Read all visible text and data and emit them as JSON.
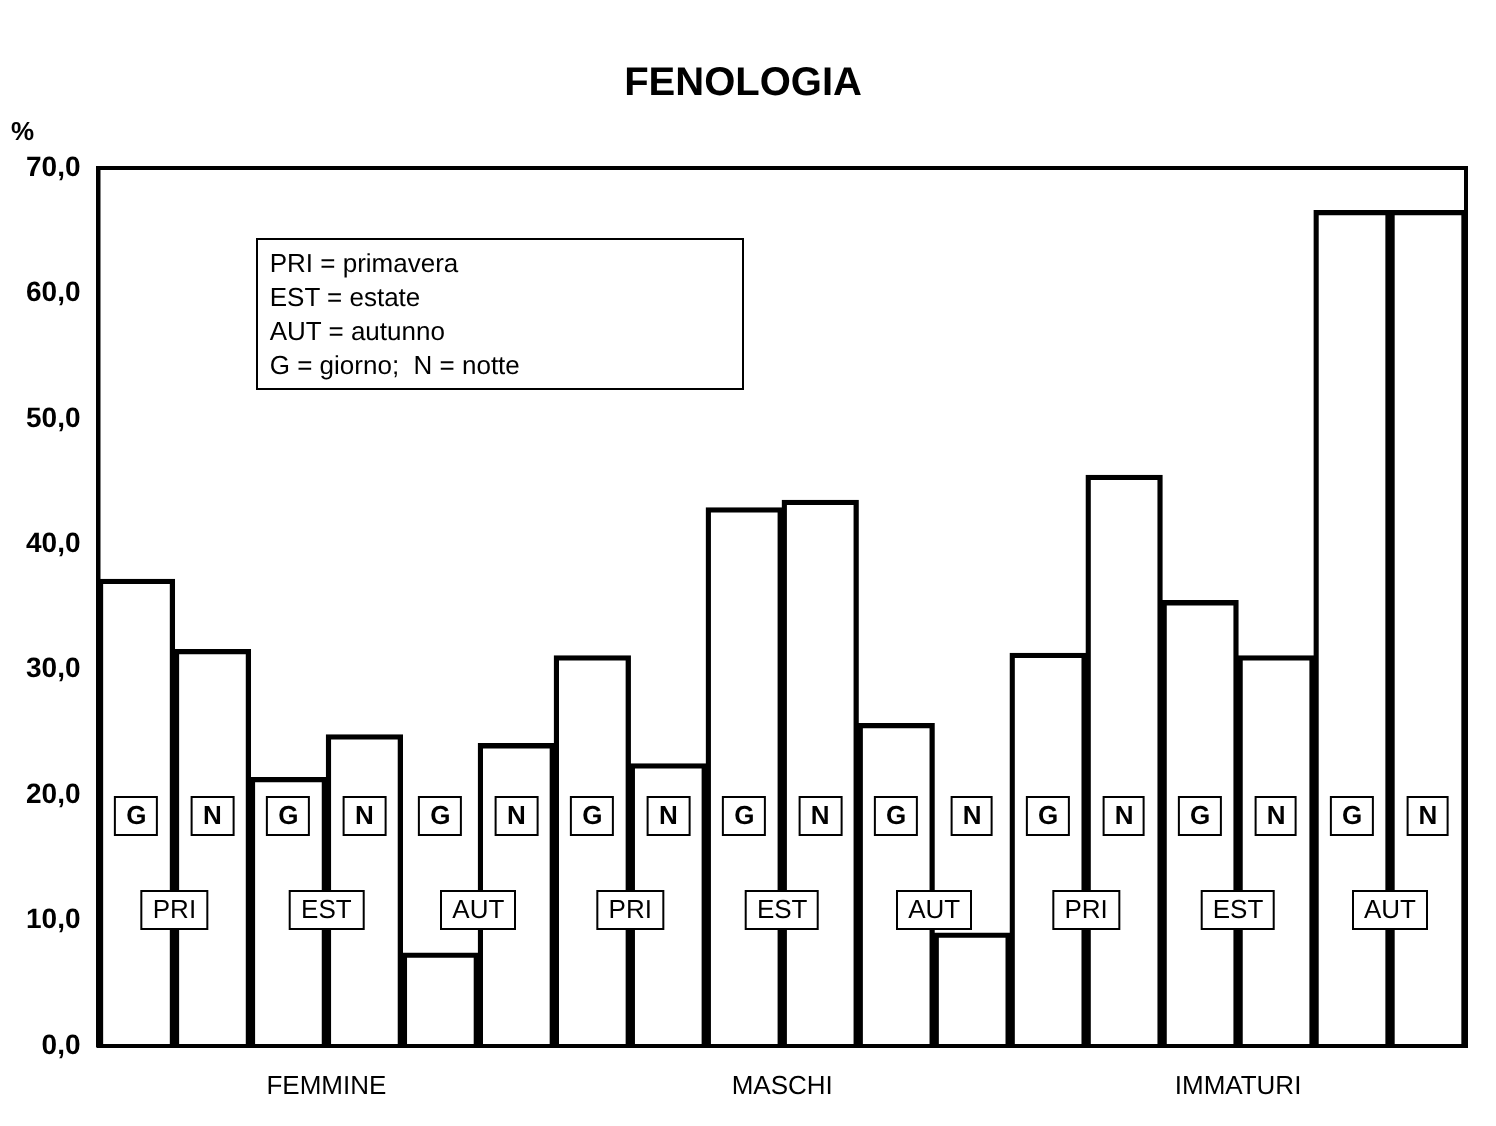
{
  "chart_data": {
    "type": "bar",
    "title": "FENOLOGIA",
    "ylabel": "%",
    "categories": [
      "PRI",
      "EST",
      "AUT",
      "PRI",
      "EST",
      "AUT",
      "PRI",
      "EST",
      "AUT"
    ],
    "series": [
      {
        "name": "G",
        "color": "#000000",
        "values": [
          37.2,
          21.4,
          7.4,
          31.1,
          42.9,
          25.7,
          31.3,
          35.5,
          66.6
        ]
      },
      {
        "name": "N",
        "color": "#000000",
        "values": [
          31.6,
          24.8,
          24.1,
          22.5,
          43.5,
          9.0,
          45.5,
          31.1,
          66.6
        ]
      }
    ],
    "ylim": [
      0,
      70
    ],
    "yticks": [
      {
        "value": 0,
        "label": "0,0"
      },
      {
        "value": 10,
        "label": "10,0"
      },
      {
        "value": 20,
        "label": "20,0"
      },
      {
        "value": 30,
        "label": "30,0"
      },
      {
        "value": 40,
        "label": "40,0"
      },
      {
        "value": 50,
        "label": "50,0"
      },
      {
        "value": 60,
        "label": "60,0"
      },
      {
        "value": 70,
        "label": "70,0"
      }
    ],
    "grid": false,
    "legend": "bottom",
    "annotations": [
      "PRI = primavera",
      "EST = estate",
      "AUT = autunno",
      "G = giorno;  N = notte",
      "FEMMINE",
      "MASCHI",
      "IMMATURI"
    ]
  }
}
